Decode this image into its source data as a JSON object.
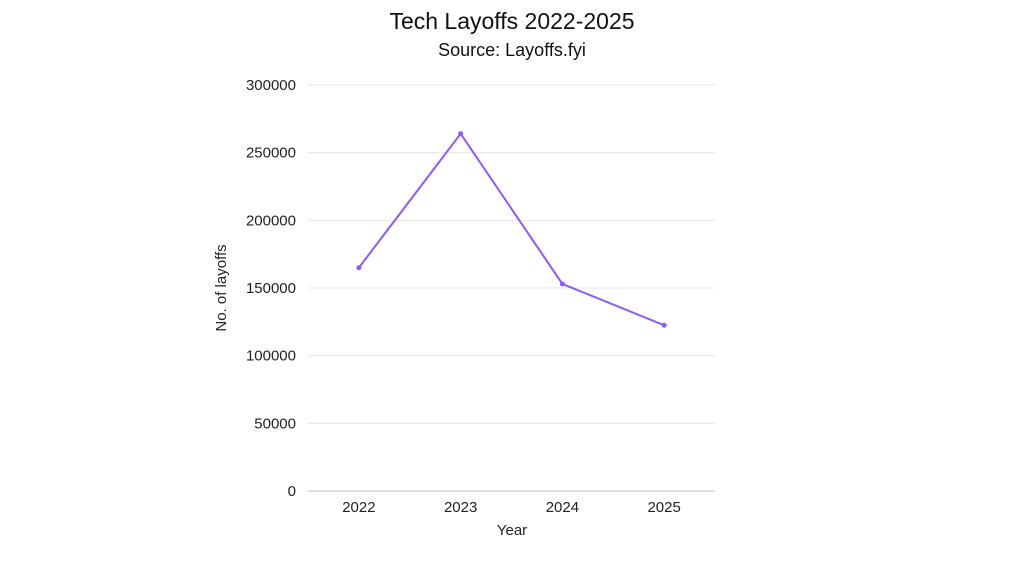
{
  "chart_data": {
    "type": "line",
    "title": "Tech Layoffs 2022-2025",
    "subtitle": "Source: Layoffs.fyi",
    "xlabel": "Year",
    "ylabel": "No. of layoffs",
    "categories": [
      "2022",
      "2023",
      "2024",
      "2025"
    ],
    "series": [
      {
        "values": [
          165000,
          264000,
          153000,
          122500
        ],
        "color": "#8b5cf6"
      }
    ],
    "ylim": [
      0,
      300000
    ],
    "yticks": [
      "0",
      "50000",
      "100000",
      "150000",
      "200000",
      "250000",
      "300000"
    ],
    "grid": true,
    "legend": "none"
  }
}
